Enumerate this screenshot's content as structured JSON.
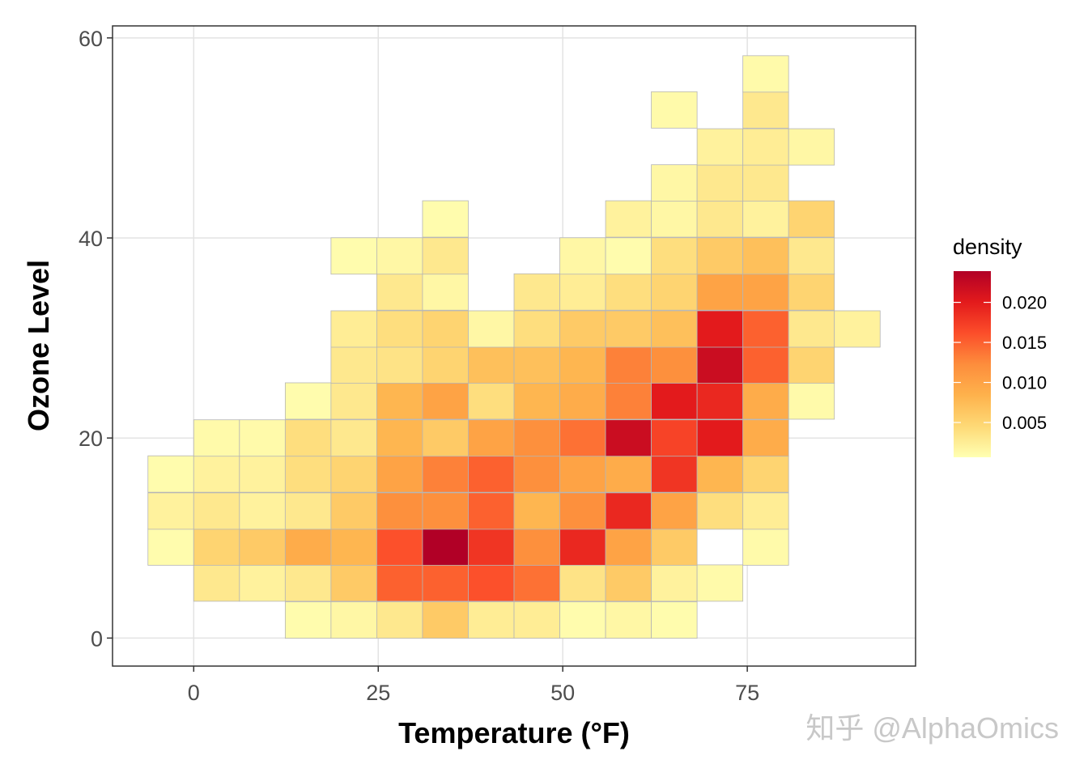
{
  "chart_data": {
    "type": "heatmap",
    "title": "",
    "xlabel": "Temperature (°F)",
    "ylabel": "Ozone Level",
    "xlim": [
      -11,
      97.8
    ],
    "ylim": [
      -2.8,
      61.2
    ],
    "x_ticks": [
      0,
      25,
      50,
      75
    ],
    "y_ticks": [
      0,
      20,
      40,
      60
    ],
    "grid": true,
    "binwidth": {
      "x": 6.2,
      "y": 3.64
    },
    "x_centers": [
      -3.1,
      3.1,
      9.3,
      15.5,
      21.7,
      27.9,
      34.1,
      40.3,
      46.5,
      52.7,
      58.9,
      65.1,
      71.3,
      77.5,
      83.7,
      89.9
    ],
    "y_centers": [
      1.8,
      5.5,
      9.1,
      12.7,
      16.4,
      20.0,
      23.7,
      27.3,
      30.9,
      34.6,
      38.2,
      41.9,
      45.5,
      49.1,
      52.8,
      56.4
    ],
    "cells": [
      [
        15.5,
        1.8,
        0.001
      ],
      [
        21.7,
        1.8,
        0.0015
      ],
      [
        27.9,
        1.8,
        0.003
      ],
      [
        34.1,
        1.8,
        0.006
      ],
      [
        40.3,
        1.8,
        0.0025
      ],
      [
        46.5,
        1.8,
        0.0025
      ],
      [
        52.7,
        1.8,
        0.001
      ],
      [
        58.9,
        1.8,
        0.0015
      ],
      [
        65.1,
        1.8,
        0.001
      ],
      [
        3.1,
        5.5,
        0.003
      ],
      [
        9.3,
        5.5,
        0.002
      ],
      [
        15.5,
        5.5,
        0.003
      ],
      [
        21.7,
        5.5,
        0.006
      ],
      [
        27.9,
        5.5,
        0.015
      ],
      [
        34.1,
        5.5,
        0.015
      ],
      [
        40.3,
        5.5,
        0.016
      ],
      [
        46.5,
        5.5,
        0.014
      ],
      [
        52.7,
        5.5,
        0.0035
      ],
      [
        58.9,
        5.5,
        0.006
      ],
      [
        65.1,
        5.5,
        0.002
      ],
      [
        71.3,
        5.5,
        0.0012
      ],
      [
        -3.1,
        9.1,
        0.001
      ],
      [
        3.1,
        9.1,
        0.005
      ],
      [
        9.3,
        9.1,
        0.006
      ],
      [
        15.5,
        9.1,
        0.009
      ],
      [
        21.7,
        9.1,
        0.008
      ],
      [
        27.9,
        9.1,
        0.016
      ],
      [
        34.1,
        9.1,
        0.024
      ],
      [
        40.3,
        9.1,
        0.018
      ],
      [
        46.5,
        9.1,
        0.012
      ],
      [
        52.7,
        9.1,
        0.019
      ],
      [
        58.9,
        9.1,
        0.01
      ],
      [
        65.1,
        9.1,
        0.006
      ],
      [
        77.5,
        9.1,
        0.0012
      ],
      [
        -3.1,
        12.7,
        0.002
      ],
      [
        3.1,
        12.7,
        0.003
      ],
      [
        9.3,
        12.7,
        0.002
      ],
      [
        15.5,
        12.7,
        0.003
      ],
      [
        21.7,
        12.7,
        0.006
      ],
      [
        27.9,
        12.7,
        0.012
      ],
      [
        34.1,
        12.7,
        0.012
      ],
      [
        40.3,
        12.7,
        0.015
      ],
      [
        46.5,
        12.7,
        0.008
      ],
      [
        52.7,
        12.7,
        0.012
      ],
      [
        58.9,
        12.7,
        0.019
      ],
      [
        65.1,
        12.7,
        0.01
      ],
      [
        71.3,
        12.7,
        0.004
      ],
      [
        77.5,
        12.7,
        0.0025
      ],
      [
        -3.1,
        16.4,
        0.001
      ],
      [
        3.1,
        16.4,
        0.002
      ],
      [
        9.3,
        16.4,
        0.002
      ],
      [
        15.5,
        16.4,
        0.004
      ],
      [
        21.7,
        16.4,
        0.005
      ],
      [
        27.9,
        16.4,
        0.01
      ],
      [
        34.1,
        16.4,
        0.013
      ],
      [
        40.3,
        16.4,
        0.015
      ],
      [
        46.5,
        16.4,
        0.012
      ],
      [
        52.7,
        16.4,
        0.01
      ],
      [
        58.9,
        16.4,
        0.009
      ],
      [
        65.1,
        16.4,
        0.018
      ],
      [
        71.3,
        16.4,
        0.008
      ],
      [
        77.5,
        16.4,
        0.005
      ],
      [
        3.1,
        20.0,
        0.0012
      ],
      [
        9.3,
        20.0,
        0.0012
      ],
      [
        15.5,
        20.0,
        0.004
      ],
      [
        21.7,
        20.0,
        0.003
      ],
      [
        27.9,
        20.0,
        0.008
      ],
      [
        34.1,
        20.0,
        0.006
      ],
      [
        40.3,
        20.0,
        0.01
      ],
      [
        46.5,
        20.0,
        0.012
      ],
      [
        52.7,
        20.0,
        0.014
      ],
      [
        58.9,
        20.0,
        0.022
      ],
      [
        65.1,
        20.0,
        0.017
      ],
      [
        71.3,
        20.0,
        0.02
      ],
      [
        77.5,
        20.0,
        0.009
      ],
      [
        15.5,
        23.7,
        0.001
      ],
      [
        21.7,
        23.7,
        0.003
      ],
      [
        27.9,
        23.7,
        0.008
      ],
      [
        34.1,
        23.7,
        0.01
      ],
      [
        40.3,
        23.7,
        0.004
      ],
      [
        46.5,
        23.7,
        0.008
      ],
      [
        52.7,
        23.7,
        0.009
      ],
      [
        58.9,
        23.7,
        0.013
      ],
      [
        65.1,
        23.7,
        0.02
      ],
      [
        71.3,
        23.7,
        0.019
      ],
      [
        77.5,
        23.7,
        0.009
      ],
      [
        83.7,
        23.7,
        0.0012
      ],
      [
        21.7,
        27.3,
        0.003
      ],
      [
        27.9,
        27.3,
        0.0035
      ],
      [
        34.1,
        27.3,
        0.005
      ],
      [
        40.3,
        27.3,
        0.007
      ],
      [
        46.5,
        27.3,
        0.007
      ],
      [
        52.7,
        27.3,
        0.008
      ],
      [
        58.9,
        27.3,
        0.013
      ],
      [
        65.1,
        27.3,
        0.012
      ],
      [
        71.3,
        27.3,
        0.022
      ],
      [
        77.5,
        27.3,
        0.015
      ],
      [
        83.7,
        27.3,
        0.005
      ],
      [
        21.7,
        30.9,
        0.0025
      ],
      [
        27.9,
        30.9,
        0.004
      ],
      [
        34.1,
        30.9,
        0.005
      ],
      [
        40.3,
        30.9,
        0.0015
      ],
      [
        46.5,
        30.9,
        0.004
      ],
      [
        52.7,
        30.9,
        0.006
      ],
      [
        58.9,
        30.9,
        0.006
      ],
      [
        65.1,
        30.9,
        0.007
      ],
      [
        71.3,
        30.9,
        0.02
      ],
      [
        77.5,
        30.9,
        0.015
      ],
      [
        83.7,
        30.9,
        0.003
      ],
      [
        89.9,
        30.9,
        0.002
      ],
      [
        27.9,
        34.6,
        0.003
      ],
      [
        34.1,
        34.6,
        0.0015
      ],
      [
        46.5,
        34.6,
        0.003
      ],
      [
        52.7,
        34.6,
        0.0025
      ],
      [
        58.9,
        34.6,
        0.004
      ],
      [
        65.1,
        34.6,
        0.005
      ],
      [
        71.3,
        34.6,
        0.01
      ],
      [
        77.5,
        34.6,
        0.01
      ],
      [
        83.7,
        34.6,
        0.005
      ],
      [
        21.7,
        38.2,
        0.001
      ],
      [
        27.9,
        38.2,
        0.0015
      ],
      [
        34.1,
        38.2,
        0.003
      ],
      [
        52.7,
        38.2,
        0.0015
      ],
      [
        58.9,
        38.2,
        0.001
      ],
      [
        65.1,
        38.2,
        0.004
      ],
      [
        71.3,
        38.2,
        0.006
      ],
      [
        77.5,
        38.2,
        0.007
      ],
      [
        83.7,
        38.2,
        0.003
      ],
      [
        34.1,
        41.9,
        0.001
      ],
      [
        58.9,
        41.9,
        0.002
      ],
      [
        65.1,
        41.9,
        0.0015
      ],
      [
        71.3,
        41.9,
        0.003
      ],
      [
        77.5,
        41.9,
        0.002
      ],
      [
        83.7,
        41.9,
        0.005
      ],
      [
        65.1,
        45.5,
        0.0015
      ],
      [
        71.3,
        45.5,
        0.003
      ],
      [
        77.5,
        45.5,
        0.003
      ],
      [
        71.3,
        49.1,
        0.002
      ],
      [
        77.5,
        49.1,
        0.0025
      ],
      [
        83.7,
        49.1,
        0.0015
      ],
      [
        65.1,
        52.8,
        0.0012
      ],
      [
        77.5,
        52.8,
        0.003
      ],
      [
        77.5,
        56.4,
        0.0012
      ]
    ],
    "legend": {
      "title": "density",
      "placement": "right",
      "ticks": [
        0.005,
        0.01,
        0.015,
        0.02
      ],
      "tick_labels": [
        "0.005",
        "0.010",
        "0.015",
        "0.020"
      ],
      "range": [
        0.00066,
        0.0239
      ],
      "colors": [
        "#ffffb2",
        "#fed976",
        "#feb24c",
        "#fd8d3c",
        "#fc4e2a",
        "#e31a1c",
        "#b10026"
      ]
    }
  },
  "watermark": "知乎 @AlphaOmics"
}
